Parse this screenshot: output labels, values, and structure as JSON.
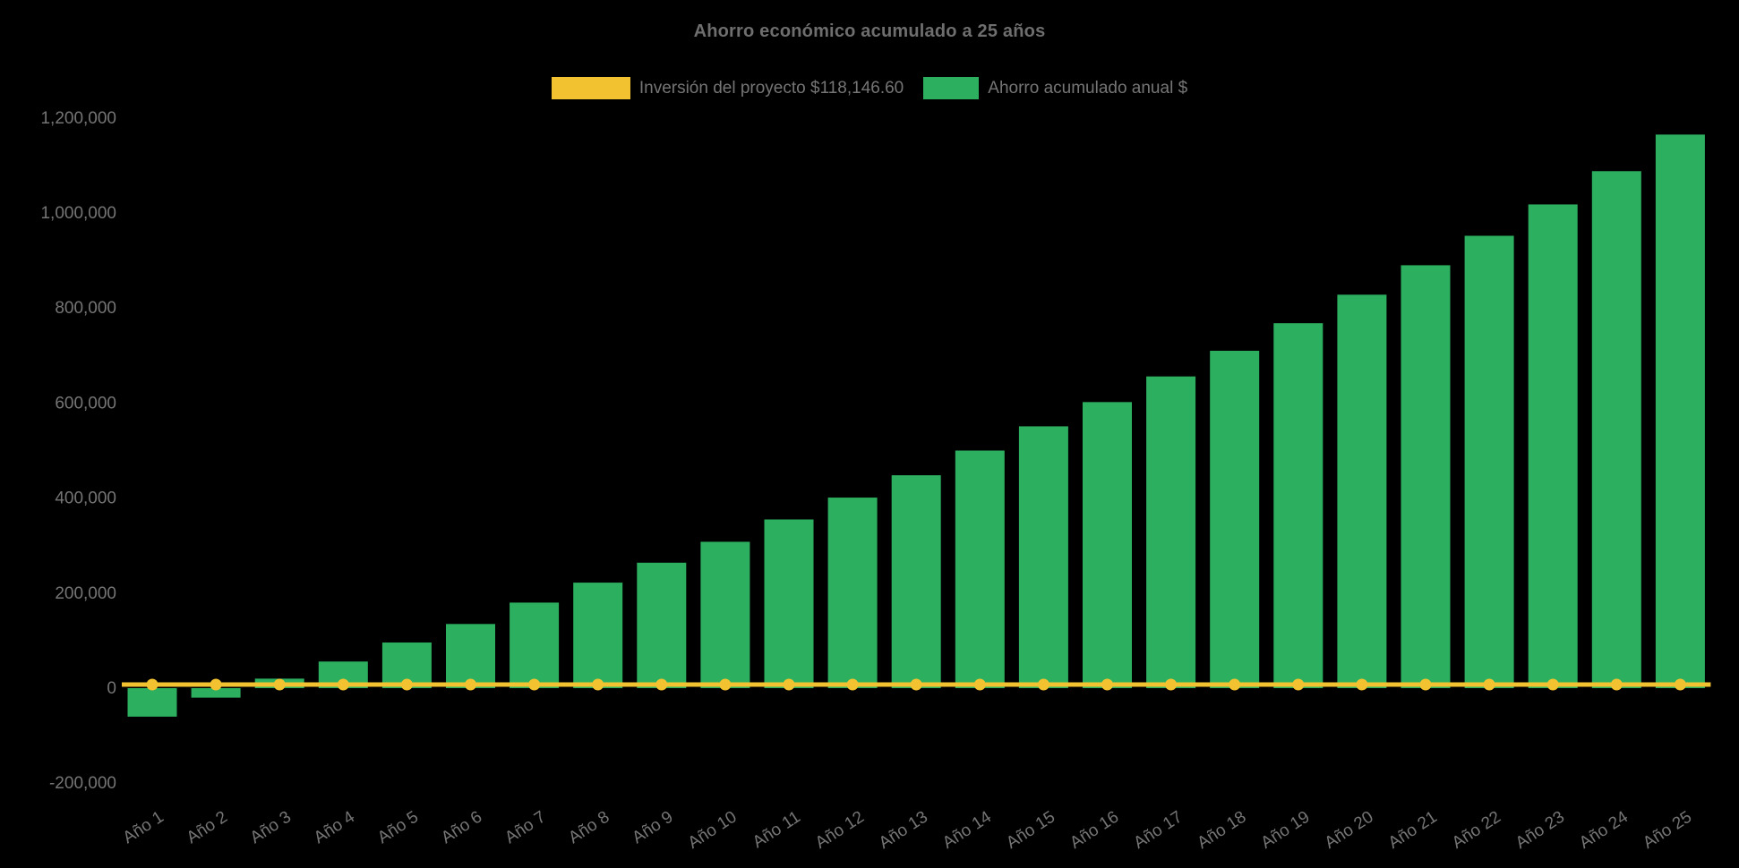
{
  "chart_data": {
    "type": "bar",
    "title": "Ahorro económico acumulado a 25 años",
    "title_color": "#6e6e6e",
    "text_color": "#757575",
    "background": "#000000",
    "legend_position": "top",
    "grid": false,
    "categories": [
      "Año 1",
      "Año 2",
      "Año 3",
      "Año 4",
      "Año 5",
      "Año 6",
      "Año 7",
      "Año 8",
      "Año 9",
      "Año 10",
      "Año 11",
      "Año 12",
      "Año 13",
      "Año 14",
      "Año 15",
      "Año 16",
      "Año 17",
      "Año 18",
      "Año 19",
      "Año 20",
      "Año 21",
      "Año 22",
      "Año 23",
      "Año 24",
      "Año 25"
    ],
    "series": [
      {
        "name": "Inversión del proyecto $118,146.60",
        "type": "line",
        "color": "#F2C230",
        "marker": "circle",
        "investment_amount": 118146.6,
        "plotted_value": 7500
      },
      {
        "name": "Ahorro acumulado anual $",
        "type": "bar",
        "color": "#2CB05F",
        "values": [
          -60000,
          -20000,
          20000,
          56000,
          96000,
          135000,
          180000,
          222000,
          264000,
          308000,
          355000,
          401000,
          448000,
          500000,
          551000,
          602000,
          656000,
          710000,
          768000,
          828000,
          890000,
          952000,
          1018000,
          1088000,
          1165000
        ]
      }
    ],
    "y_axis": {
      "ticks": [
        -200000,
        0,
        200000,
        400000,
        600000,
        800000,
        1000000,
        1200000
      ],
      "tick_format": "thousands-comma",
      "range": [
        -200000,
        1200000
      ]
    },
    "x_axis": {
      "label_rotation_deg": -33
    }
  }
}
